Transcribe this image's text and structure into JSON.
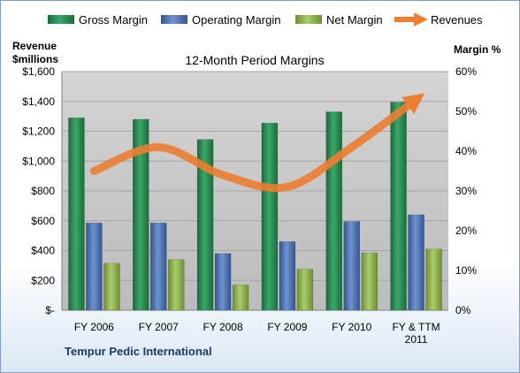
{
  "chart_data": {
    "type": "bar",
    "title": "12-Month Period Margins",
    "categories": [
      [
        "FY 2006"
      ],
      [
        "FY 2007"
      ],
      [
        "FY 2008"
      ],
      [
        "FY 2009"
      ],
      [
        "FY 2010"
      ],
      [
        "FY & TTM",
        "2011"
      ]
    ],
    "series": [
      {
        "name": "Gross Margin",
        "type": "bar",
        "axis": "left",
        "color": "#2e8b57",
        "values": [
          1290,
          1280,
          1145,
          1255,
          1330,
          1395
        ]
      },
      {
        "name": "Operating Margin",
        "type": "bar",
        "axis": "left",
        "color": "#4f75b5",
        "values": [
          585,
          585,
          380,
          460,
          595,
          640
        ]
      },
      {
        "name": "Net Margin",
        "type": "bar",
        "axis": "left",
        "color": "#8db04e",
        "values": [
          315,
          340,
          170,
          275,
          385,
          410
        ]
      },
      {
        "name": "Revenues",
        "type": "line",
        "axis": "right",
        "color": "#ed7d31",
        "values": [
          35,
          41,
          34,
          31,
          41,
          53
        ]
      }
    ],
    "y_left": {
      "label_lines": [
        "Revenue",
        "$millions"
      ],
      "range": [
        0,
        1600
      ],
      "ticks": [
        0,
        200,
        400,
        600,
        800,
        1000,
        1200,
        1400,
        1600
      ],
      "tick_labels": [
        "$-",
        "$200",
        "$400",
        "$600",
        "$800",
        "$1,000",
        "$1,200",
        "$1,400",
        "$1,600"
      ]
    },
    "y_right": {
      "label": "Margin %",
      "range": [
        0,
        60
      ],
      "ticks": [
        0,
        10,
        20,
        30,
        40,
        50,
        60
      ],
      "tick_labels": [
        "0%",
        "10%",
        "20%",
        "30%",
        "40%",
        "50%",
        "60%"
      ]
    },
    "grid": true,
    "legend_position": "top",
    "source_label": "Tempur Pedic International",
    "colors": {
      "plot_background": "#c8c8c8",
      "gridline": "#a6a6a6"
    }
  }
}
